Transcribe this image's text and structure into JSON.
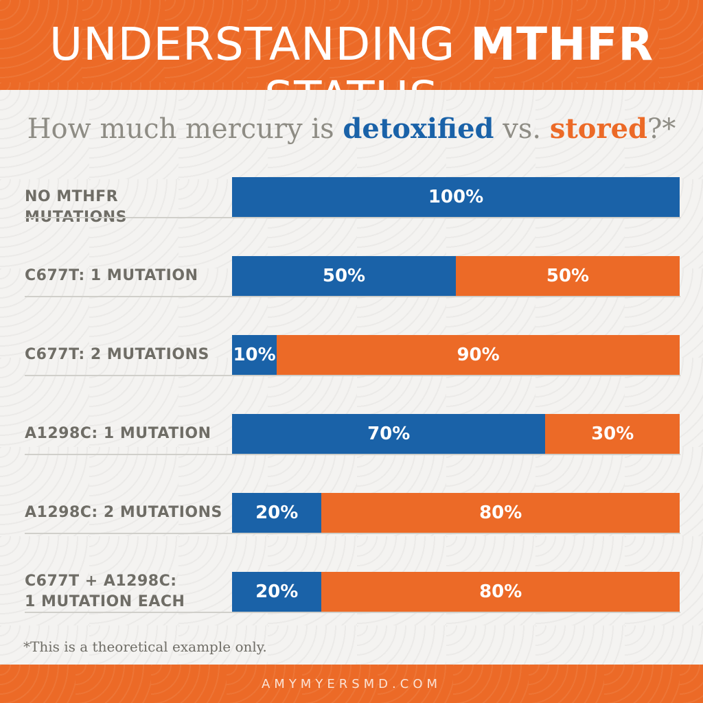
{
  "title": {
    "prefix": "UNDERSTANDING ",
    "bold": "MTHFR",
    "suffix": " STATUS"
  },
  "subtitle": {
    "prefix": "How much mercury is ",
    "detoxified": "detoxified",
    "mid": " vs. ",
    "stored": "stored",
    "suffix": "?*"
  },
  "colors": {
    "detoxified": "#1a62a8",
    "stored": "#ec6a27",
    "brand": "#ec6a27"
  },
  "chart_data": {
    "type": "bar",
    "orientation": "horizontal",
    "stacked": true,
    "categories": [
      "NO MTHFR MUTATIONS",
      "C677T: 1 MUTATION",
      "C677T: 2 MUTATIONS",
      "A1298C: 1 MUTATION",
      "A1298C: 2 MUTATIONS",
      "C677T + A1298C: 1 MUTATION EACH"
    ],
    "category_lines": [
      [
        "NO MTHFR MUTATIONS"
      ],
      [
        "C677T: 1 MUTATION"
      ],
      [
        "C677T: 2 MUTATIONS"
      ],
      [
        "A1298C: 1 MUTATION"
      ],
      [
        "A1298C: 2 MUTATIONS"
      ],
      [
        "C677T + A1298C:",
        "1 MUTATION EACH"
      ]
    ],
    "series": [
      {
        "name": "detoxified",
        "color": "#1a62a8",
        "values": [
          100,
          50,
          10,
          70,
          20,
          20
        ],
        "labels": [
          "100%",
          "50%",
          "10%",
          "70%",
          "20%",
          "20%"
        ]
      },
      {
        "name": "stored",
        "color": "#ec6a27",
        "values": [
          0,
          50,
          90,
          30,
          80,
          80
        ],
        "labels": [
          "",
          "50%",
          "90%",
          "30%",
          "80%",
          "80%"
        ]
      }
    ],
    "xlim": [
      0,
      100
    ],
    "unit": "%",
    "grid": false,
    "legend": "none"
  },
  "footnote": "*This is a theoretical example only.",
  "footer": "AMYMYERSMD.COM"
}
